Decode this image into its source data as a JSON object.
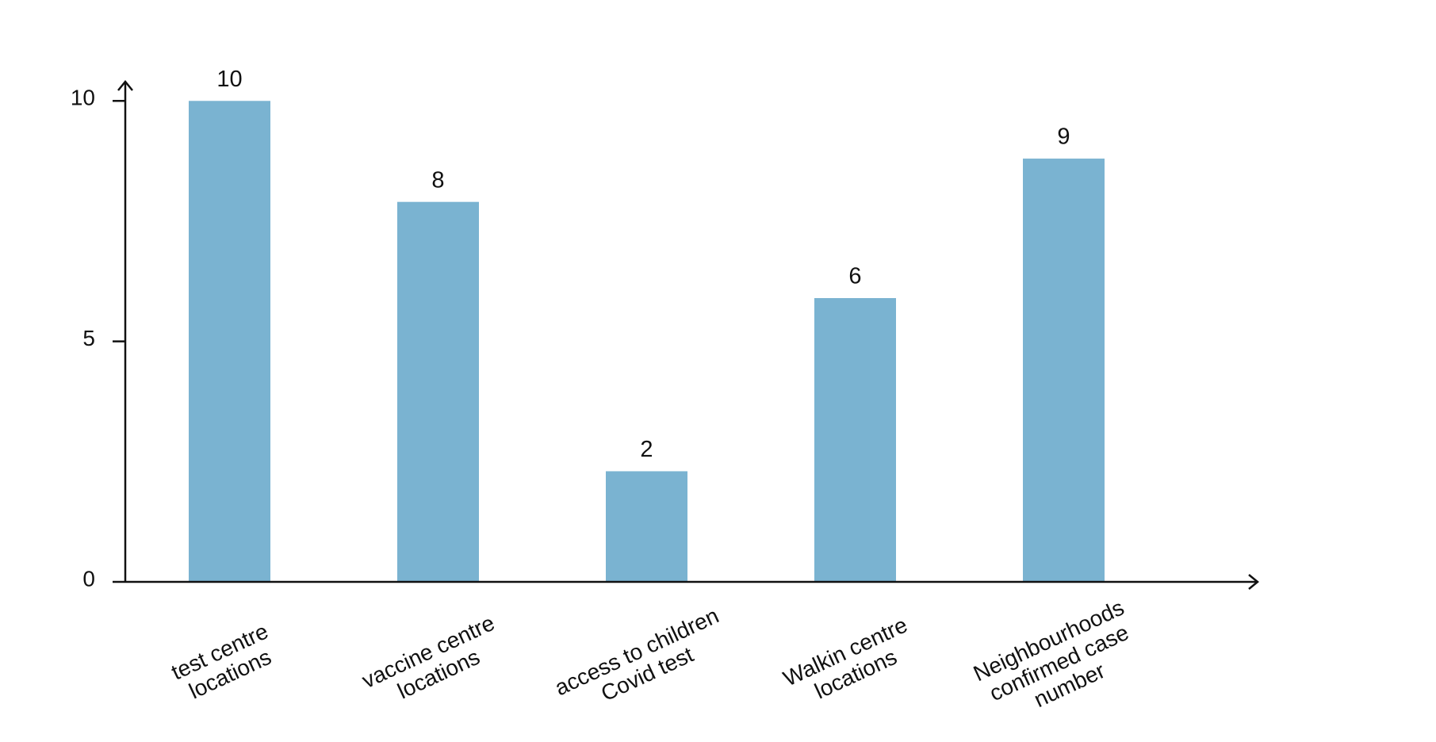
{
  "chart_data": {
    "type": "bar",
    "categories": [
      [
        "test centre",
        "locations"
      ],
      [
        "vaccine centre",
        "locations"
      ],
      [
        "access to children",
        "Covid test"
      ],
      [
        "Walkin centre",
        "locations"
      ],
      [
        "Neighbourhoods",
        "confirmed case",
        "number"
      ]
    ],
    "values": [
      10,
      7.9,
      2.3,
      5.9,
      8.8
    ],
    "value_labels": [
      "10",
      "8",
      "2",
      "6",
      "9"
    ],
    "color": "#7ab3d1",
    "ylim": [
      0,
      10.4
    ],
    "yticks": [
      0,
      5,
      10
    ],
    "grid": false
  }
}
